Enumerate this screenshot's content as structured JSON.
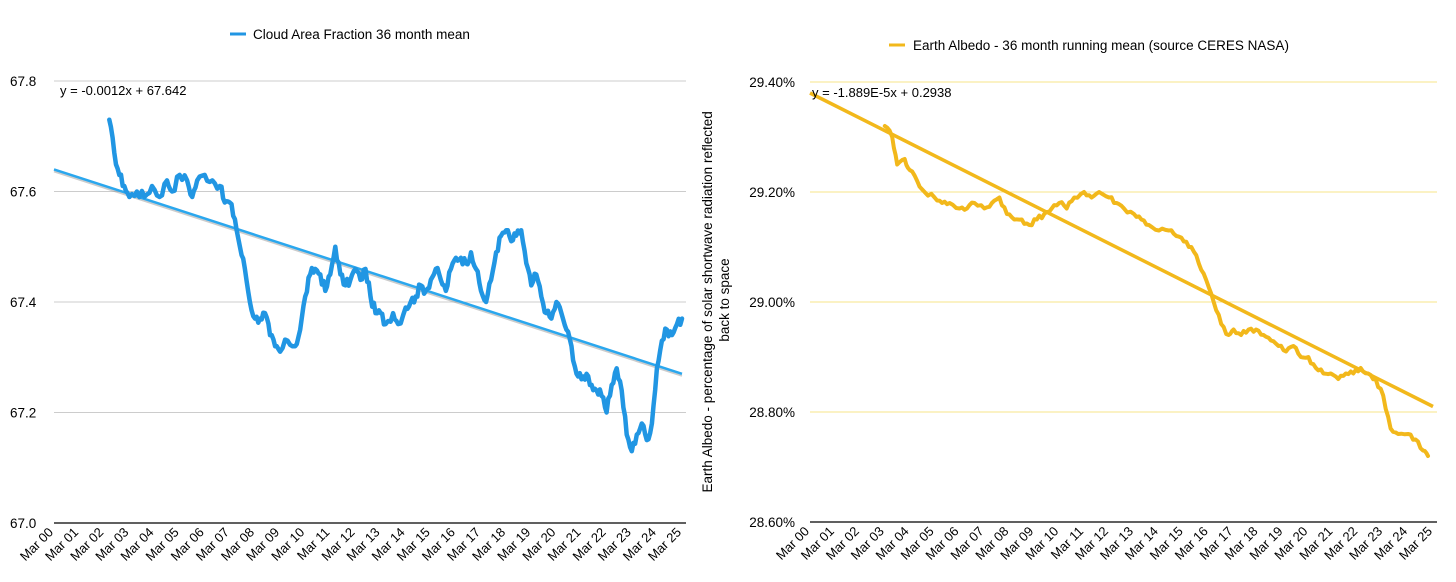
{
  "colors": {
    "left_series": "#2196e3",
    "left_trend": "#2aa7ee",
    "left_trend_shadow": "#9a9a9a",
    "right_series": "#f2b81b",
    "right_grid": "#f7e58a",
    "left_grid": "#cccccc",
    "axis": "#000000"
  },
  "chart_data": [
    {
      "type": "line",
      "legend": "Cloud Area Fraction 36 month mean",
      "legend_position": "top",
      "equation": "y = -0.0012x + 67.642",
      "ylabel": "",
      "ylim": [
        67.0,
        67.8
      ],
      "yticks": [
        "67.8",
        "67.6",
        "67.4",
        "67.2",
        "67.0"
      ],
      "ytick_values": [
        67.8,
        67.6,
        67.4,
        67.2,
        67.0
      ],
      "categories": [
        "Mar 00",
        "Mar 01",
        "Mar 02",
        "Mar 03",
        "Mar 04",
        "Mar 05",
        "Mar 06",
        "Mar 07",
        "Mar 08",
        "Mar 09",
        "Mar 10",
        "Mar 11",
        "Mar 12",
        "Mar 13",
        "Mar 14",
        "Mar 15",
        "Mar 16",
        "Mar 17",
        "Mar 18",
        "Mar 19",
        "Mar 20",
        "Mar 21",
        "Mar 22",
        "Mar 23",
        "Mar 24",
        "Mar 25"
      ],
      "trend": {
        "start": [
          0,
          67.64
        ],
        "end": [
          25,
          67.27
        ]
      },
      "series": [
        {
          "name": "Cloud Area Fraction 36 month mean",
          "points": [
            [
              2.2,
              67.73
            ],
            [
              2.4,
              67.67
            ],
            [
              2.6,
              67.63
            ],
            [
              2.8,
              67.61
            ],
            [
              3.0,
              67.59
            ],
            [
              3.3,
              67.6
            ],
            [
              3.6,
              67.59
            ],
            [
              3.9,
              67.61
            ],
            [
              4.2,
              67.59
            ],
            [
              4.5,
              67.62
            ],
            [
              4.7,
              67.6
            ],
            [
              5.0,
              67.63
            ],
            [
              5.3,
              67.62
            ],
            [
              5.5,
              67.59
            ],
            [
              5.7,
              67.62
            ],
            [
              6.0,
              67.63
            ],
            [
              6.3,
              67.62
            ],
            [
              6.6,
              67.61
            ],
            [
              6.8,
              67.58
            ],
            [
              7.0,
              67.58
            ],
            [
              7.2,
              67.55
            ],
            [
              7.4,
              67.5
            ],
            [
              7.6,
              67.46
            ],
            [
              7.8,
              67.4
            ],
            [
              8.0,
              67.37
            ],
            [
              8.2,
              67.37
            ],
            [
              8.4,
              67.38
            ],
            [
              8.6,
              67.34
            ],
            [
              8.8,
              67.32
            ],
            [
              9.0,
              67.31
            ],
            [
              9.3,
              67.33
            ],
            [
              9.6,
              67.32
            ],
            [
              9.8,
              67.35
            ],
            [
              10.0,
              67.41
            ],
            [
              10.2,
              67.45
            ],
            [
              10.4,
              67.46
            ],
            [
              10.6,
              67.45
            ],
            [
              10.8,
              67.42
            ],
            [
              11.0,
              67.45
            ],
            [
              11.2,
              67.5
            ],
            [
              11.4,
              67.45
            ],
            [
              11.6,
              67.43
            ],
            [
              11.8,
              67.44
            ],
            [
              12.0,
              67.46
            ],
            [
              12.2,
              67.44
            ],
            [
              12.4,
              67.46
            ],
            [
              12.6,
              67.41
            ],
            [
              12.8,
              67.38
            ],
            [
              13.0,
              67.38
            ],
            [
              13.2,
              67.36
            ],
            [
              13.5,
              67.38
            ],
            [
              13.7,
              67.36
            ],
            [
              14.0,
              67.39
            ],
            [
              14.2,
              67.4
            ],
            [
              14.4,
              67.41
            ],
            [
              14.6,
              67.43
            ],
            [
              14.8,
              67.42
            ],
            [
              15.0,
              67.44
            ],
            [
              15.2,
              67.46
            ],
            [
              15.4,
              67.44
            ],
            [
              15.6,
              67.42
            ],
            [
              15.8,
              67.46
            ],
            [
              16.0,
              67.48
            ],
            [
              16.2,
              67.48
            ],
            [
              16.4,
              67.47
            ],
            [
              16.6,
              67.49
            ],
            [
              16.8,
              67.46
            ],
            [
              17.0,
              67.42
            ],
            [
              17.2,
              67.4
            ],
            [
              17.4,
              67.44
            ],
            [
              17.6,
              67.49
            ],
            [
              17.8,
              67.52
            ],
            [
              18.0,
              67.53
            ],
            [
              18.2,
              67.51
            ],
            [
              18.4,
              67.52
            ],
            [
              18.6,
              67.53
            ],
            [
              18.8,
              67.47
            ],
            [
              19.0,
              67.43
            ],
            [
              19.2,
              67.45
            ],
            [
              19.4,
              67.41
            ],
            [
              19.6,
              67.38
            ],
            [
              19.8,
              67.37
            ],
            [
              20.0,
              67.4
            ],
            [
              20.2,
              67.38
            ],
            [
              20.4,
              67.35
            ],
            [
              20.6,
              67.32
            ],
            [
              20.8,
              67.27
            ],
            [
              21.0,
              67.26
            ],
            [
              21.2,
              67.27
            ],
            [
              21.4,
              67.25
            ],
            [
              21.6,
              67.24
            ],
            [
              21.8,
              67.23
            ],
            [
              22.0,
              67.2
            ],
            [
              22.2,
              67.25
            ],
            [
              22.4,
              67.28
            ],
            [
              22.6,
              67.24
            ],
            [
              22.8,
              67.16
            ],
            [
              23.0,
              67.13
            ],
            [
              23.2,
              67.16
            ],
            [
              23.4,
              67.18
            ],
            [
              23.6,
              67.15
            ],
            [
              23.8,
              67.18
            ],
            [
              24.0,
              67.28
            ],
            [
              24.2,
              67.33
            ],
            [
              24.4,
              67.35
            ],
            [
              24.6,
              67.34
            ],
            [
              24.8,
              67.36
            ],
            [
              25.0,
              67.37
            ]
          ]
        }
      ]
    },
    {
      "type": "line",
      "legend": "Earth Albedo - 36 month running mean (source CERES NASA)",
      "legend_position": "top",
      "equation": "y = -1.889E-5x + 0.2938",
      "ylabel": "Earth Albedo - percentage of solar shortwave radiation reflected back to space",
      "ylim": [
        28.6,
        29.4
      ],
      "yticks": [
        "29.40%",
        "29.20%",
        "29.00%",
        "28.80%",
        "28.60%"
      ],
      "ytick_values": [
        29.4,
        29.2,
        29.0,
        28.8,
        28.6
      ],
      "categories": [
        "Mar 00",
        "Mar 01",
        "Mar 02",
        "Mar 03",
        "Mar 04",
        "Mar 05",
        "Mar 06",
        "Mar 07",
        "Mar 08",
        "Mar 09",
        "Mar 10",
        "Mar 11",
        "Mar 12",
        "Mar 13",
        "Mar 14",
        "Mar 15",
        "Mar 16",
        "Mar 17",
        "Mar 18",
        "Mar 19",
        "Mar 20",
        "Mar 21",
        "Mar 22",
        "Mar 23",
        "Mar 24",
        "Mar 25"
      ],
      "trend": {
        "start": [
          0,
          29.38
        ],
        "end": [
          25,
          28.81
        ]
      },
      "series": [
        {
          "name": "Earth Albedo - 36 month running mean (source CERES NASA)",
          "points": [
            [
              3.0,
              29.32
            ],
            [
              3.3,
              29.3
            ],
            [
              3.5,
              29.25
            ],
            [
              3.8,
              29.26
            ],
            [
              4.0,
              29.24
            ],
            [
              4.3,
              29.22
            ],
            [
              4.6,
              29.2
            ],
            [
              5.0,
              29.19
            ],
            [
              5.3,
              29.18
            ],
            [
              5.6,
              29.18
            ],
            [
              6.0,
              29.17
            ],
            [
              6.3,
              29.17
            ],
            [
              6.6,
              29.18
            ],
            [
              7.0,
              29.17
            ],
            [
              7.3,
              29.18
            ],
            [
              7.6,
              29.19
            ],
            [
              7.9,
              29.16
            ],
            [
              8.2,
              29.15
            ],
            [
              8.5,
              29.15
            ],
            [
              8.8,
              29.14
            ],
            [
              9.1,
              29.15
            ],
            [
              9.4,
              29.16
            ],
            [
              9.7,
              29.17
            ],
            [
              10.0,
              29.18
            ],
            [
              10.3,
              29.17
            ],
            [
              10.6,
              29.19
            ],
            [
              11.0,
              29.2
            ],
            [
              11.3,
              29.19
            ],
            [
              11.6,
              29.2
            ],
            [
              12.0,
              29.19
            ],
            [
              12.3,
              29.18
            ],
            [
              12.6,
              29.17
            ],
            [
              13.0,
              29.16
            ],
            [
              13.3,
              29.15
            ],
            [
              13.6,
              29.14
            ],
            [
              14.0,
              29.13
            ],
            [
              14.4,
              29.13
            ],
            [
              14.7,
              29.12
            ],
            [
              15.0,
              29.11
            ],
            [
              15.3,
              29.1
            ],
            [
              15.6,
              29.07
            ],
            [
              15.9,
              29.04
            ],
            [
              16.2,
              29.0
            ],
            [
              16.5,
              28.96
            ],
            [
              16.8,
              28.94
            ],
            [
              17.0,
              28.95
            ],
            [
              17.3,
              28.94
            ],
            [
              17.6,
              28.95
            ],
            [
              17.9,
              28.95
            ],
            [
              18.2,
              28.94
            ],
            [
              18.5,
              28.93
            ],
            [
              18.8,
              28.92
            ],
            [
              19.1,
              28.91
            ],
            [
              19.4,
              28.92
            ],
            [
              19.7,
              28.9
            ],
            [
              20.0,
              28.9
            ],
            [
              20.3,
              28.88
            ],
            [
              20.6,
              28.87
            ],
            [
              20.9,
              28.87
            ],
            [
              21.2,
              28.86
            ],
            [
              21.5,
              28.87
            ],
            [
              21.8,
              28.87
            ],
            [
              22.1,
              28.88
            ],
            [
              22.4,
              28.87
            ],
            [
              22.7,
              28.86
            ],
            [
              23.0,
              28.83
            ],
            [
              23.3,
              28.77
            ],
            [
              23.6,
              28.76
            ],
            [
              24.0,
              28.76
            ],
            [
              24.3,
              28.75
            ],
            [
              24.6,
              28.73
            ],
            [
              24.8,
              28.72
            ]
          ]
        }
      ]
    }
  ]
}
